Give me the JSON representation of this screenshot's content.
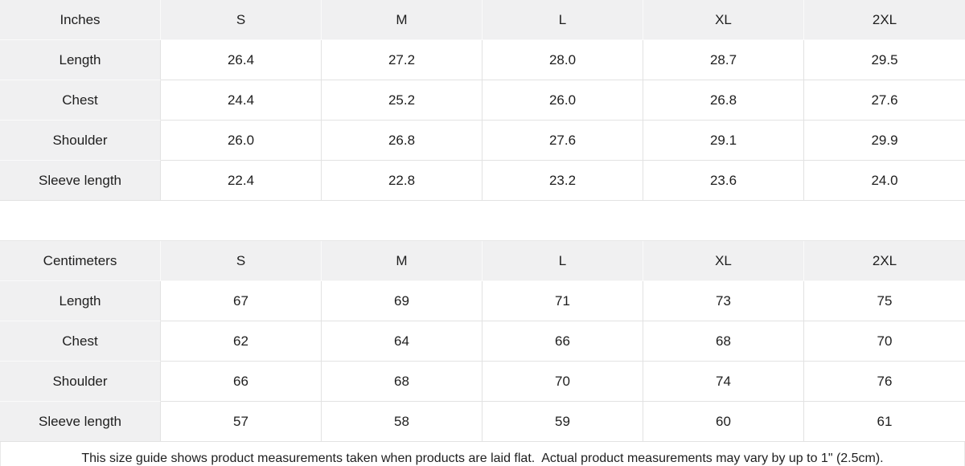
{
  "colors": {
    "header_bg": "#f0f0f1",
    "grid_line": "#e2e2e2",
    "light_separator": "#fafafa",
    "text": "#1e1e1e"
  },
  "size_chart": {
    "sizes": [
      "S",
      "M",
      "L",
      "XL",
      "2XL"
    ],
    "inches": {
      "unit_label": "Inches",
      "rows": [
        {
          "label": "Length",
          "values": [
            "26.4",
            "27.2",
            "28.0",
            "28.7",
            "29.5"
          ]
        },
        {
          "label": "Chest",
          "values": [
            "24.4",
            "25.2",
            "26.0",
            "26.8",
            "27.6"
          ]
        },
        {
          "label": "Shoulder",
          "values": [
            "26.0",
            "26.8",
            "27.6",
            "29.1",
            "29.9"
          ]
        },
        {
          "label": "Sleeve length",
          "values": [
            "22.4",
            "22.8",
            "23.2",
            "23.6",
            "24.0"
          ]
        }
      ]
    },
    "centimeters": {
      "unit_label": "Centimeters",
      "rows": [
        {
          "label": "Length",
          "values": [
            "67",
            "69",
            "71",
            "73",
            "75"
          ]
        },
        {
          "label": "Chest",
          "values": [
            "62",
            "64",
            "66",
            "68",
            "70"
          ]
        },
        {
          "label": "Shoulder",
          "values": [
            "66",
            "68",
            "70",
            "74",
            "76"
          ]
        },
        {
          "label": "Sleeve length",
          "values": [
            "57",
            "58",
            "59",
            "60",
            "61"
          ]
        }
      ]
    },
    "footnote": "This size guide shows product measurements taken when products are laid flat.  Actual product measurements may vary by up to 1\" (2.5cm)."
  }
}
